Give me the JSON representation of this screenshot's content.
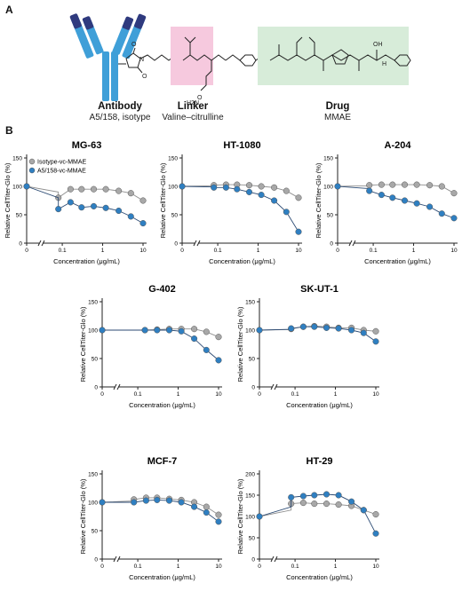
{
  "panels": {
    "a": "A",
    "b": "B"
  },
  "construct": {
    "antibody": {
      "title": "Antibody",
      "subtitle": "A5/158, isotype"
    },
    "linker": {
      "title": "Linker",
      "subtitle": "Valine–citrulline"
    },
    "drug": {
      "title": "Drug",
      "subtitle": "MMAE"
    },
    "atom_labels": {
      "o1": "O",
      "o2": "O",
      "n1": "N",
      "h2n": "H2N",
      "o3": "O",
      "oh": "OH",
      "h": "H"
    },
    "colors": {
      "antibody_dark": "#2f3a7e",
      "antibody_light": "#3f9fd8",
      "linker_bg": "#f6c9de",
      "drug_bg": "#d7ecd9"
    }
  },
  "legend": {
    "iso": "Isotype-vc-MMAE",
    "a5": "A5/158-vc-MMAE"
  },
  "colors": {
    "iso": "#a8a8a8",
    "a5": "#2f7fc1",
    "iso_line": "#909090",
    "a5_line": "#2b4a73"
  },
  "chart_data": [
    {
      "type": "scatter",
      "title": "MG-63",
      "xlabel": "Concentration (μg/mL)",
      "ylabel": "Relative CellTiter-Glo (%)",
      "xscale": "log",
      "xticks": [
        "0",
        "0.1",
        "1",
        "10"
      ],
      "yticks": [
        0,
        50,
        100,
        150
      ],
      "ylim": [
        0,
        150
      ],
      "legend_position": "top-left",
      "x": [
        0,
        0.08,
        0.16,
        0.3,
        0.6,
        1.2,
        2.5,
        5,
        10
      ],
      "series": [
        {
          "name": "Isotype-vc-MMAE",
          "values": [
            100,
            80,
            95,
            95,
            95,
            95,
            92,
            88,
            75
          ]
        },
        {
          "name": "A5/158-vc-MMAE",
          "values": [
            100,
            60,
            72,
            63,
            65,
            62,
            57,
            47,
            35
          ]
        }
      ]
    },
    {
      "type": "scatter",
      "title": "HT-1080",
      "xlabel": "Concentration (μg/mL)",
      "ylabel": "Relative CellTiter-Glo (%)",
      "xscale": "log",
      "xticks": [
        "0",
        "0.1",
        "1",
        "10"
      ],
      "yticks": [
        0,
        50,
        100,
        150
      ],
      "ylim": [
        0,
        150
      ],
      "x": [
        0,
        0.08,
        0.16,
        0.3,
        0.6,
        1.2,
        2.5,
        5,
        10
      ],
      "series": [
        {
          "name": "Isotype-vc-MMAE",
          "values": [
            100,
            102,
            103,
            103,
            102,
            100,
            98,
            92,
            80
          ]
        },
        {
          "name": "A5/158-vc-MMAE",
          "values": [
            100,
            98,
            98,
            95,
            90,
            85,
            75,
            55,
            20
          ]
        }
      ]
    },
    {
      "type": "scatter",
      "title": "A-204",
      "xlabel": "Concentration (μg/mL)",
      "ylabel": "Relative CellTiter-Glo (%)",
      "xscale": "log",
      "xticks": [
        "0",
        "0.1",
        "1",
        "10"
      ],
      "yticks": [
        0,
        50,
        100,
        150
      ],
      "ylim": [
        0,
        150
      ],
      "x": [
        0,
        0.08,
        0.16,
        0.3,
        0.6,
        1.2,
        2.5,
        5,
        10
      ],
      "series": [
        {
          "name": "Isotype-vc-MMAE",
          "values": [
            100,
            102,
            103,
            103,
            103,
            103,
            102,
            100,
            88
          ]
        },
        {
          "name": "A5/158-vc-MMAE",
          "values": [
            100,
            92,
            85,
            80,
            75,
            70,
            64,
            52,
            44
          ]
        }
      ]
    },
    {
      "type": "scatter",
      "title": "G-402",
      "xlabel": "Concentration (μg/mL)",
      "ylabel": "Relative CellTiter-Glo (%)",
      "xscale": "log",
      "xticks": [
        "0",
        "0.1",
        "1",
        "10"
      ],
      "yticks": [
        0,
        50,
        100,
        150
      ],
      "ylim": [
        0,
        150
      ],
      "x": [
        0,
        0.15,
        0.3,
        0.6,
        1.2,
        2.5,
        5,
        10
      ],
      "series": [
        {
          "name": "Isotype-vc-MMAE",
          "values": [
            100,
            100,
            101,
            102,
            102,
            102,
            97,
            88
          ]
        },
        {
          "name": "A5/158-vc-MMAE",
          "values": [
            100,
            100,
            100,
            100,
            98,
            85,
            65,
            47
          ]
        }
      ]
    },
    {
      "type": "scatter",
      "title": "SK-UT-1",
      "xlabel": "Concentration (μg/mL)",
      "ylabel": "Relative CellTiter-Glo (%)",
      "xscale": "log",
      "xticks": [
        "0",
        "0.1",
        "1",
        "10"
      ],
      "yticks": [
        0,
        50,
        100,
        150
      ],
      "ylim": [
        0,
        150
      ],
      "x": [
        0,
        0.08,
        0.16,
        0.3,
        0.6,
        1.2,
        2.5,
        5,
        10
      ],
      "series": [
        {
          "name": "Isotype-vc-MMAE",
          "values": [
            100,
            102,
            106,
            107,
            106,
            104,
            104,
            100,
            98
          ]
        },
        {
          "name": "A5/158-vc-MMAE",
          "values": [
            100,
            103,
            106,
            106,
            104,
            103,
            100,
            95,
            80
          ]
        }
      ]
    },
    {
      "type": "scatter",
      "title": "MCF-7",
      "xlabel": "Concentration (μg/mL)",
      "ylabel": "Relative CellTiter-Glo (%)",
      "xscale": "log",
      "xticks": [
        "0",
        "0.1",
        "1",
        "10"
      ],
      "yticks": [
        0,
        50,
        100,
        150
      ],
      "ylim": [
        0,
        150
      ],
      "x": [
        0,
        0.08,
        0.16,
        0.3,
        0.6,
        1.2,
        2.5,
        5,
        10
      ],
      "series": [
        {
          "name": "Isotype-vc-MMAE",
          "values": [
            100,
            105,
            108,
            108,
            106,
            104,
            100,
            92,
            78
          ]
        },
        {
          "name": "A5/158-vc-MMAE",
          "values": [
            100,
            100,
            103,
            104,
            103,
            100,
            92,
            82,
            66
          ]
        }
      ]
    },
    {
      "type": "scatter",
      "title": "HT-29",
      "xlabel": "Concentration (μg/mL)",
      "ylabel": "Relative CellTiter-Glo (%)",
      "xscale": "log",
      "xticks": [
        "0",
        "0.1",
        "1",
        "10"
      ],
      "yticks": [
        0,
        50,
        100,
        150,
        200
      ],
      "ylim": [
        0,
        200
      ],
      "x": [
        0,
        0.08,
        0.16,
        0.3,
        0.6,
        1.2,
        2.5,
        5,
        10
      ],
      "series": [
        {
          "name": "Isotype-vc-MMAE",
          "values": [
            100,
            130,
            132,
            130,
            130,
            128,
            125,
            115,
            105
          ]
        },
        {
          "name": "A5/158-vc-MMAE",
          "values": [
            100,
            145,
            148,
            150,
            152,
            150,
            135,
            115,
            60
          ]
        }
      ]
    }
  ]
}
